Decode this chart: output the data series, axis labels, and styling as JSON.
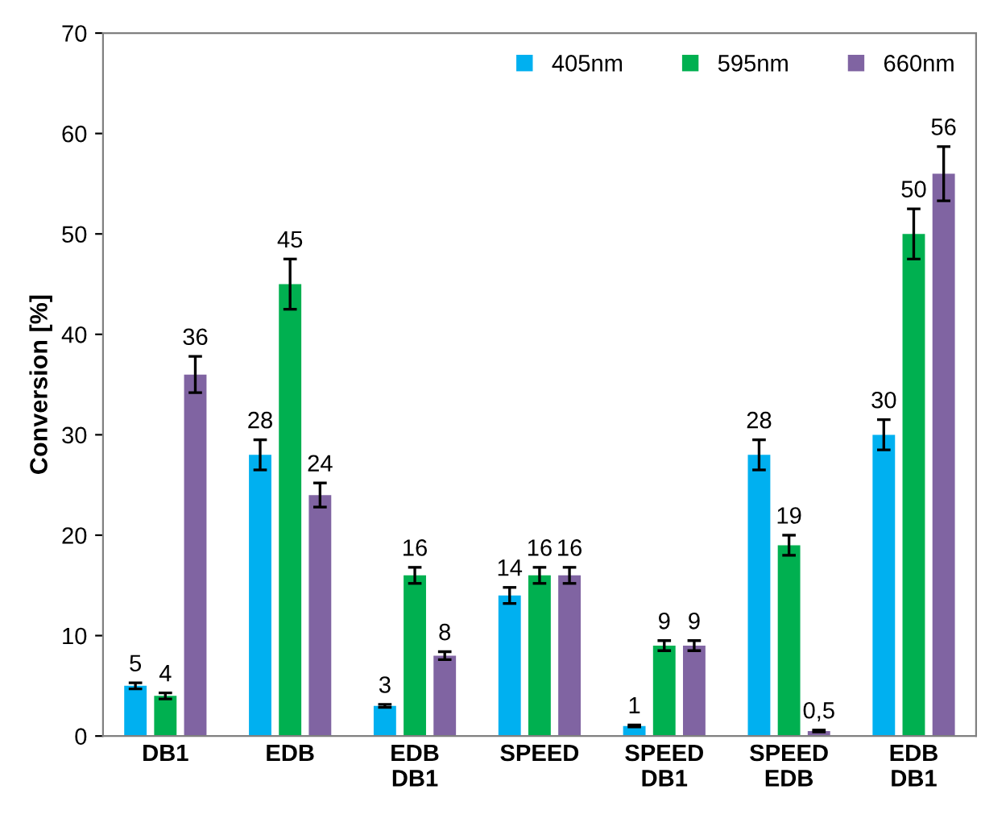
{
  "chart_data": {
    "type": "bar",
    "ylabel": "Conversion [%]",
    "categories": [
      "DB1",
      "EDB",
      "EDB\nDB1",
      "SPEED",
      "SPEED\nDB1",
      "SPEED\nEDB",
      "EDB\nDB1"
    ],
    "series": [
      {
        "name": "405nm",
        "color": "#00b0f0",
        "values": [
          5,
          28,
          3,
          14,
          1,
          28,
          30
        ],
        "errors": [
          0.3,
          1.5,
          0.15,
          0.8,
          0.1,
          1.5,
          1.5
        ],
        "value_labels": [
          "5",
          "28",
          "3",
          "14",
          "1",
          "28",
          "30"
        ]
      },
      {
        "name": "595nm",
        "color": "#00b050",
        "values": [
          4,
          45,
          16,
          16,
          9,
          19,
          50
        ],
        "errors": [
          0.3,
          2.5,
          0.8,
          0.8,
          0.5,
          1.0,
          2.5
        ],
        "value_labels": [
          "4",
          "45",
          "16",
          "16",
          "9",
          "19",
          "50"
        ]
      },
      {
        "name": "660nm",
        "color": "#8064a2",
        "values": [
          36,
          24,
          8,
          16,
          9,
          0.5,
          56
        ],
        "errors": [
          1.8,
          1.2,
          0.4,
          0.8,
          0.5,
          0.1,
          2.7
        ],
        "value_labels": [
          "36",
          "24",
          "8",
          "16",
          "9",
          "0,5",
          "56"
        ]
      }
    ],
    "ylim": [
      0,
      70
    ],
    "yticks": [
      0,
      10,
      20,
      30,
      40,
      50,
      60,
      70
    ],
    "grid": false,
    "legend": "top right"
  }
}
